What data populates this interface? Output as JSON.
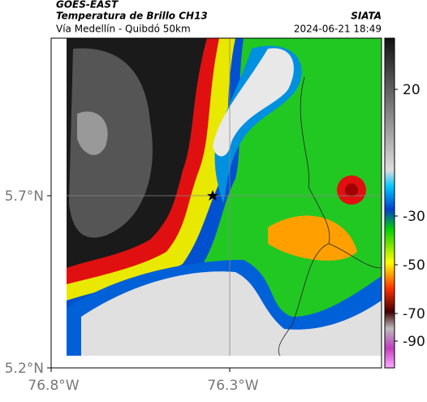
{
  "header": {
    "title": "GOES-EAST",
    "subtitle": "Temperatura de Brillo CH13",
    "region": "Vía Medellín - Quibdó 50km",
    "source": "SIATA",
    "datetime": "2024-06-21 18:49"
  },
  "axes": {
    "y_labels": [
      "5.7°N",
      "5.2°N"
    ],
    "x_labels": [
      "76.8°W",
      "76.3°W"
    ]
  },
  "colorbar": {
    "tick_labels": [
      "20",
      "-30",
      "-50",
      "-70",
      "-90"
    ]
  }
}
